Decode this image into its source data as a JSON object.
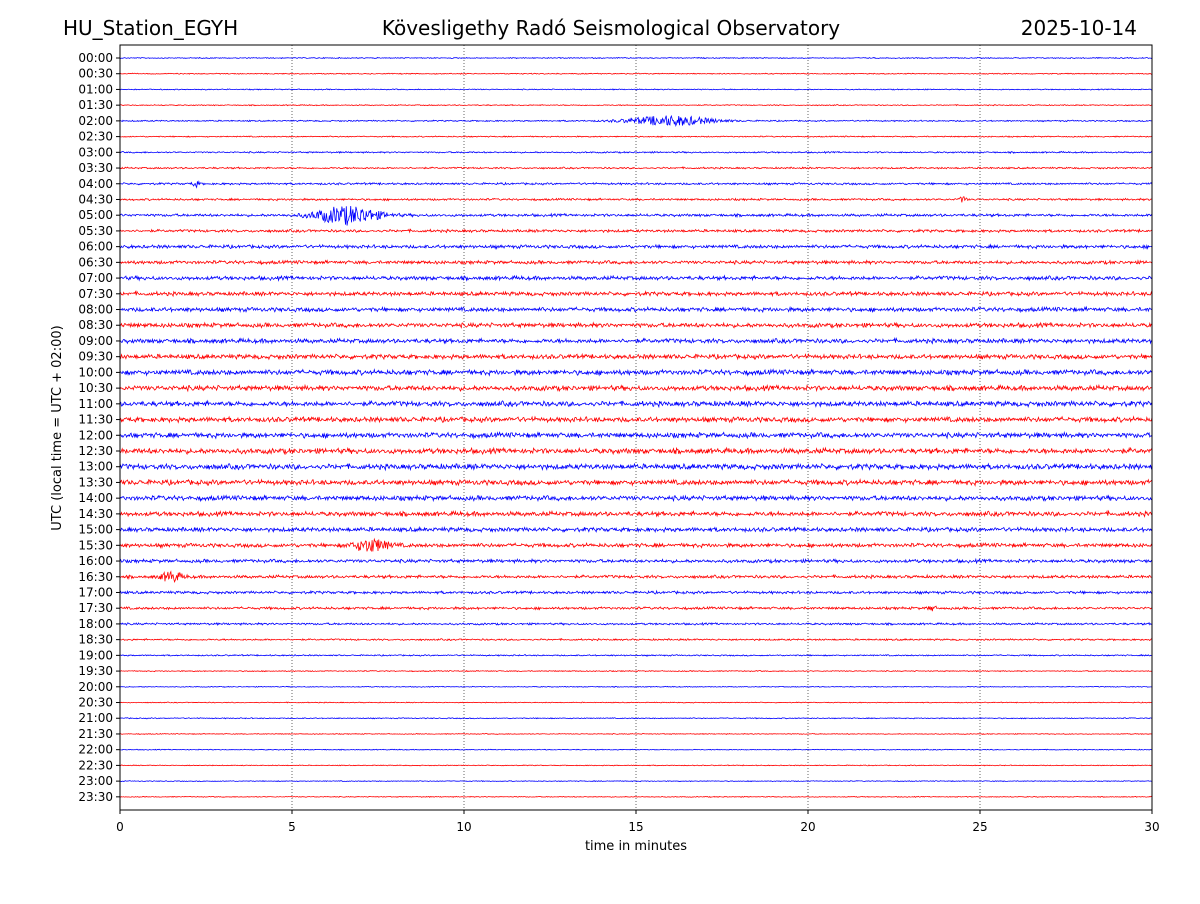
{
  "header": {
    "station": "HU_Station_EGYH",
    "observatory": "Kövesligethy Radó Seismological Observatory",
    "date": "2025-10-14"
  },
  "chart_data": {
    "type": "line",
    "title": "Kövesligethy Radó Seismological Observatory",
    "xlabel": "time in minutes",
    "ylabel": "UTC (local time = UTC + 02:00)",
    "xlim": [
      0,
      30
    ],
    "xticks": [
      0,
      5,
      10,
      15,
      20,
      25,
      30
    ],
    "grid_x": [
      5,
      10,
      15,
      20,
      25
    ],
    "series_colors": [
      "#0000ff",
      "#ff0000"
    ],
    "color_rule": "full hours blue, half hours red",
    "rows": [
      {
        "label": "00:00",
        "amplitude": 0.6
      },
      {
        "label": "00:30",
        "amplitude": 0.6
      },
      {
        "label": "01:00",
        "amplitude": 0.6
      },
      {
        "label": "01:30",
        "amplitude": 0.6
      },
      {
        "label": "02:00",
        "amplitude": 0.8,
        "events": [
          {
            "t": 16.0,
            "amp": 5,
            "width": 1.2
          }
        ]
      },
      {
        "label": "02:30",
        "amplitude": 0.7
      },
      {
        "label": "03:00",
        "amplitude": 0.9
      },
      {
        "label": "03:30",
        "amplitude": 1.0
      },
      {
        "label": "04:00",
        "amplitude": 1.2,
        "events": [
          {
            "t": 2.2,
            "amp": 3,
            "width": 0.1
          }
        ]
      },
      {
        "label": "04:30",
        "amplitude": 1.2,
        "events": [
          {
            "t": 24.5,
            "amp": 3,
            "width": 0.1
          }
        ]
      },
      {
        "label": "05:00",
        "amplitude": 1.6,
        "events": [
          {
            "t": 6.6,
            "amp": 9,
            "width": 0.9
          }
        ]
      },
      {
        "label": "05:30",
        "amplitude": 1.6
      },
      {
        "label": "06:00",
        "amplitude": 2.0
      },
      {
        "label": "06:30",
        "amplitude": 2.0
      },
      {
        "label": "07:00",
        "amplitude": 2.3
      },
      {
        "label": "07:30",
        "amplitude": 2.3
      },
      {
        "label": "08:00",
        "amplitude": 2.5
      },
      {
        "label": "08:30",
        "amplitude": 2.6
      },
      {
        "label": "09:00",
        "amplitude": 2.6
      },
      {
        "label": "09:30",
        "amplitude": 2.7
      },
      {
        "label": "10:00",
        "amplitude": 3.0
      },
      {
        "label": "10:30",
        "amplitude": 3.0
      },
      {
        "label": "11:00",
        "amplitude": 3.0
      },
      {
        "label": "11:30",
        "amplitude": 3.0
      },
      {
        "label": "12:00",
        "amplitude": 3.0
      },
      {
        "label": "12:30",
        "amplitude": 3.2
      },
      {
        "label": "13:00",
        "amplitude": 3.2
      },
      {
        "label": "13:30",
        "amplitude": 3.0
      },
      {
        "label": "14:00",
        "amplitude": 2.8
      },
      {
        "label": "14:30",
        "amplitude": 2.7
      },
      {
        "label": "15:00",
        "amplitude": 2.5
      },
      {
        "label": "15:30",
        "amplitude": 2.3,
        "events": [
          {
            "t": 7.3,
            "amp": 6,
            "width": 0.5
          }
        ]
      },
      {
        "label": "16:00",
        "amplitude": 2.0
      },
      {
        "label": "16:30",
        "amplitude": 1.8,
        "events": [
          {
            "t": 1.5,
            "amp": 5,
            "width": 0.3
          }
        ]
      },
      {
        "label": "17:00",
        "amplitude": 1.6
      },
      {
        "label": "17:30",
        "amplitude": 1.5,
        "events": [
          {
            "t": 23.6,
            "amp": 3,
            "width": 0.1
          }
        ]
      },
      {
        "label": "18:00",
        "amplitude": 1.2
      },
      {
        "label": "18:30",
        "amplitude": 1.0
      },
      {
        "label": "19:00",
        "amplitude": 0.8
      },
      {
        "label": "19:30",
        "amplitude": 0.6
      },
      {
        "label": "20:00",
        "amplitude": 0.5
      },
      {
        "label": "20:30",
        "amplitude": 0.5
      },
      {
        "label": "21:00",
        "amplitude": 0.6
      },
      {
        "label": "21:30",
        "amplitude": 0.5
      },
      {
        "label": "22:00",
        "amplitude": 0.5
      },
      {
        "label": "22:30",
        "amplitude": 0.5
      },
      {
        "label": "23:00",
        "amplitude": 0.5
      },
      {
        "label": "23:30",
        "amplitude": 0.5
      }
    ]
  }
}
